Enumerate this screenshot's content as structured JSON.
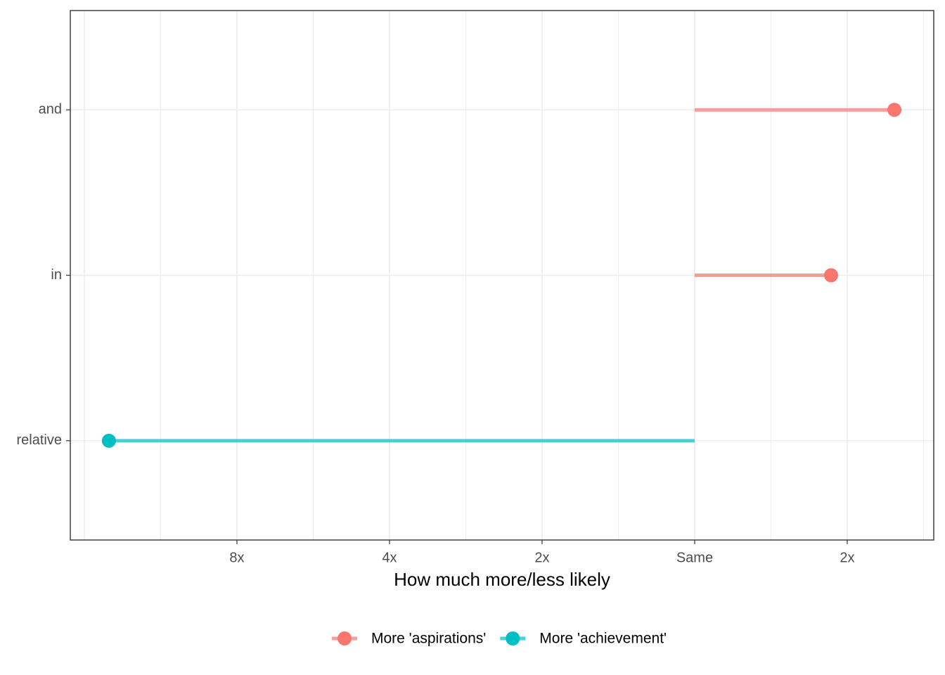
{
  "chart_data": {
    "type": "lollipop",
    "x_label": "How much more/less likely",
    "categories": [
      "and",
      "in",
      "relative"
    ],
    "series": [
      {
        "name": "More 'aspirations'",
        "color": "#F8766D",
        "values": [
          1.309,
          0.894,
          null
        ]
      },
      {
        "name": "More 'achievement'",
        "color": "#00BFC4",
        "values": [
          null,
          null,
          -3.839
        ]
      }
    ],
    "x_log_base": 2,
    "xlim": [
      -4.092,
      1.567
    ],
    "xticks": [
      {
        "value": -3,
        "label": "8x"
      },
      {
        "value": -2,
        "label": "4x"
      },
      {
        "value": -1,
        "label": "2x"
      },
      {
        "value": 0,
        "label": "Same"
      },
      {
        "value": 1,
        "label": "2x"
      }
    ],
    "grid": true,
    "legend": "bottom"
  }
}
